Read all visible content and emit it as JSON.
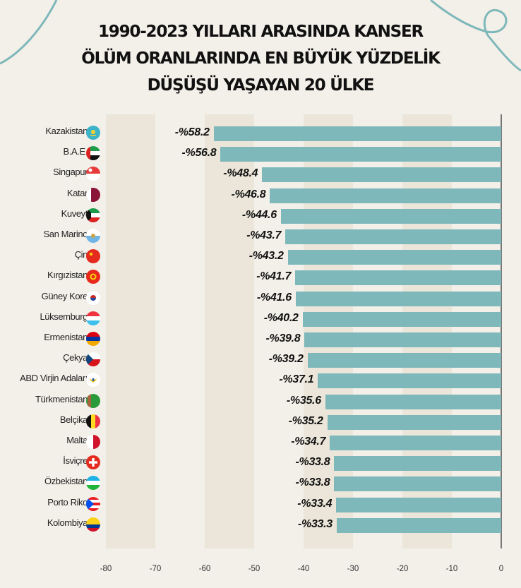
{
  "title": {
    "line1": "1990-2023 YILLARI ARASINDA KANSER",
    "line2": "ÖLÜM ORANLARINDA EN BÜYÜK YÜZDELİK",
    "line3": "DÜŞÜŞÜ YAŞAYAN 20 ÜLKE"
  },
  "colors": {
    "bar": "#7fb8ba",
    "background": "#f3f0e9",
    "band": "#ebe6d9",
    "decoration": "#7fb8ba"
  },
  "chart_data": {
    "type": "bar",
    "orientation": "horizontal",
    "title": "1990-2023 YILLARI ARASINDA KANSER ÖLÜM ORANLARINDA EN BÜYÜK YÜZDELİK DÜŞÜŞÜ YAŞAYAN 20 ÜLKE",
    "xlabel": "",
    "ylabel": "",
    "xlim": [
      -80,
      0
    ],
    "x_ticks": [
      -80,
      -70,
      -60,
      -50,
      -40,
      -30,
      -20,
      -10,
      0
    ],
    "grid": "alternating vertical bands",
    "categories": [
      "Kazakistan",
      "B.A.E.",
      "Singapur",
      "Katar",
      "Kuveyt",
      "San Marino",
      "Çin",
      "Kırgızistan",
      "Güney Kore",
      "Lüksemburg",
      "Ermenistan",
      "Çekya",
      "ABD Virjin Adaları",
      "Türkmenistan",
      "Belçika",
      "Malta",
      "İsviçre",
      "Özbekistan",
      "Porto Riko",
      "Kolombiya"
    ],
    "values": [
      -58.2,
      -56.8,
      -48.4,
      -46.8,
      -44.6,
      -43.7,
      -43.2,
      -41.7,
      -41.6,
      -40.2,
      -39.8,
      -39.2,
      -37.1,
      -35.6,
      -35.2,
      -34.7,
      -33.8,
      -33.8,
      -33.4,
      -33.3
    ],
    "value_labels": [
      "-%58.2",
      "-%56.8",
      "-%48.4",
      "-%46.8",
      "-%44.6",
      "-%43.7",
      "-%43.2",
      "-%41.7",
      "-%41.6",
      "-%40.2",
      "-%39.8",
      "-%39.2",
      "-%37.1",
      "-%35.6",
      "-%35.2",
      "-%34.7",
      "-%33.8",
      "-%33.8",
      "-%33.4",
      "-%33.3"
    ]
  },
  "axis": {
    "ticks": [
      "-80",
      "-70",
      "-60",
      "-50",
      "-40",
      "-30",
      "-20",
      "-10",
      "0"
    ]
  },
  "rows": [
    {
      "country": "Kazakistan",
      "value": -58.2,
      "label": "-%58.2",
      "flag": "kazakhstan-flag-icon"
    },
    {
      "country": "B.A.E.",
      "value": -56.8,
      "label": "-%56.8",
      "flag": "uae-flag-icon"
    },
    {
      "country": "Singapur",
      "value": -48.4,
      "label": "-%48.4",
      "flag": "singapore-flag-icon"
    },
    {
      "country": "Katar",
      "value": -46.8,
      "label": "-%46.8",
      "flag": "qatar-flag-icon"
    },
    {
      "country": "Kuveyt",
      "value": -44.6,
      "label": "-%44.6",
      "flag": "kuwait-flag-icon"
    },
    {
      "country": "San Marino",
      "value": -43.7,
      "label": "-%43.7",
      "flag": "san-marino-flag-icon"
    },
    {
      "country": "Çin",
      "value": -43.2,
      "label": "-%43.2",
      "flag": "china-flag-icon"
    },
    {
      "country": "Kırgızistan",
      "value": -41.7,
      "label": "-%41.7",
      "flag": "kyrgyzstan-flag-icon"
    },
    {
      "country": "Güney Kore",
      "value": -41.6,
      "label": "-%41.6",
      "flag": "south-korea-flag-icon"
    },
    {
      "country": "Lüksemburg",
      "value": -40.2,
      "label": "-%40.2",
      "flag": "luxembourg-flag-icon"
    },
    {
      "country": "Ermenistan",
      "value": -39.8,
      "label": "-%39.8",
      "flag": "armenia-flag-icon"
    },
    {
      "country": "Çekya",
      "value": -39.2,
      "label": "-%39.2",
      "flag": "czechia-flag-icon"
    },
    {
      "country": "ABD Virjin Adaları",
      "value": -37.1,
      "label": "-%37.1",
      "flag": "usvi-flag-icon"
    },
    {
      "country": "Türkmenistan",
      "value": -35.6,
      "label": "-%35.6",
      "flag": "turkmenistan-flag-icon"
    },
    {
      "country": "Belçika",
      "value": -35.2,
      "label": "-%35.2",
      "flag": "belgium-flag-icon"
    },
    {
      "country": "Malta",
      "value": -34.7,
      "label": "-%34.7",
      "flag": "malta-flag-icon"
    },
    {
      "country": "İsviçre",
      "value": -33.8,
      "label": "-%33.8",
      "flag": "switzerland-flag-icon"
    },
    {
      "country": "Özbekistan",
      "value": -33.8,
      "label": "-%33.8",
      "flag": "uzbekistan-flag-icon"
    },
    {
      "country": "Porto Riko",
      "value": -33.4,
      "label": "-%33.4",
      "flag": "puerto-rico-flag-icon"
    },
    {
      "country": "Kolombiya",
      "value": -33.3,
      "label": "-%33.3",
      "flag": "colombia-flag-icon"
    }
  ]
}
